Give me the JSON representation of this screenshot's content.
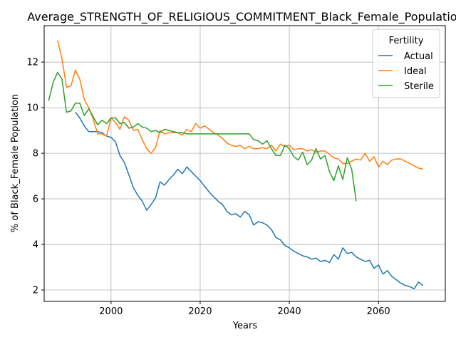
{
  "chart_data": {
    "type": "line",
    "title": "Average_STRENGTH_OF_RELIGIOUS_COMMITMENT_Black_Female_Population",
    "xlabel": "Years",
    "ylabel": "% of Black_Female Population",
    "xlim": [
      1985,
      2075
    ],
    "ylim": [
      1.5,
      13.6
    ],
    "xticks": [
      2000,
      2020,
      2040,
      2060
    ],
    "yticks": [
      2,
      4,
      6,
      8,
      10,
      12
    ],
    "grid": true,
    "legend": {
      "title": "Fertility",
      "position": "top-right"
    },
    "series": [
      {
        "name": "Actual",
        "color": "#1f77b4",
        "x": [
          1992,
          1993,
          1994,
          1995,
          1996,
          1997,
          1998,
          1999,
          2000,
          2001,
          2002,
          2003,
          2004,
          2005,
          2006,
          2007,
          2008,
          2009,
          2010,
          2011,
          2012,
          2013,
          2014,
          2015,
          2016,
          2017,
          2018,
          2019,
          2020,
          2021,
          2022,
          2023,
          2024,
          2025,
          2026,
          2027,
          2028,
          2029,
          2030,
          2031,
          2032,
          2033,
          2034,
          2035,
          2036,
          2037,
          2038,
          2039,
          2040,
          2041,
          2042,
          2043,
          2044,
          2045,
          2046,
          2047,
          2048,
          2049,
          2050,
          2051,
          2052,
          2053,
          2054,
          2055,
          2056,
          2057,
          2058,
          2059,
          2060,
          2061,
          2062,
          2063,
          2064,
          2065,
          2066,
          2067,
          2068,
          2069,
          2070
        ],
        "y": [
          9.8,
          9.55,
          9.2,
          8.95,
          8.95,
          8.95,
          8.9,
          8.75,
          8.7,
          8.5,
          7.9,
          7.6,
          7.05,
          6.5,
          6.15,
          5.9,
          5.5,
          5.75,
          6.05,
          6.75,
          6.6,
          6.85,
          7.05,
          7.3,
          7.1,
          7.4,
          7.2,
          7.0,
          6.8,
          6.55,
          6.3,
          6.1,
          5.9,
          5.75,
          5.45,
          5.3,
          5.35,
          5.2,
          5.45,
          5.3,
          4.85,
          5.0,
          4.95,
          4.85,
          4.65,
          4.3,
          4.2,
          3.95,
          3.85,
          3.7,
          3.6,
          3.5,
          3.45,
          3.35,
          3.4,
          3.25,
          3.3,
          3.2,
          3.55,
          3.35,
          3.85,
          3.6,
          3.65,
          3.45,
          3.35,
          3.25,
          3.3,
          2.95,
          3.1,
          2.7,
          2.85,
          2.6,
          2.45,
          2.3,
          2.2,
          2.15,
          2.05,
          2.35,
          2.2
        ]
      },
      {
        "name": "Ideal",
        "color": "#ff7f0e",
        "x": [
          1988,
          1989,
          1990,
          1991,
          1992,
          1993,
          1994,
          1995,
          1996,
          1997,
          1998,
          1999,
          2000,
          2001,
          2002,
          2003,
          2004,
          2005,
          2006,
          2007,
          2008,
          2009,
          2010,
          2011,
          2012,
          2013,
          2014,
          2015,
          2016,
          2017,
          2018,
          2019,
          2020,
          2021,
          2022,
          2023,
          2024,
          2025,
          2026,
          2027,
          2028,
          2029,
          2030,
          2031,
          2032,
          2033,
          2034,
          2035,
          2036,
          2037,
          2038,
          2039,
          2040,
          2041,
          2042,
          2043,
          2044,
          2045,
          2046,
          2047,
          2048,
          2049,
          2050,
          2051,
          2052,
          2053,
          2054,
          2055,
          2056,
          2057,
          2058,
          2059,
          2060,
          2061,
          2062,
          2063,
          2064,
          2065,
          2066,
          2067,
          2068,
          2069,
          2070
        ],
        "y": [
          12.95,
          12.15,
          10.9,
          10.95,
          11.65,
          11.25,
          10.35,
          10.0,
          9.5,
          8.85,
          8.85,
          8.75,
          9.55,
          9.35,
          9.05,
          9.6,
          9.45,
          9.0,
          9.05,
          8.6,
          8.2,
          8.0,
          8.25,
          9.0,
          8.85,
          8.9,
          8.9,
          8.9,
          8.8,
          9.05,
          8.95,
          9.3,
          9.1,
          9.2,
          9.05,
          8.9,
          8.8,
          8.65,
          8.45,
          8.35,
          8.3,
          8.35,
          8.2,
          8.3,
          8.2,
          8.2,
          8.25,
          8.2,
          8.35,
          8.1,
          8.4,
          8.3,
          8.35,
          8.15,
          8.2,
          8.2,
          8.1,
          8.15,
          8.05,
          8.1,
          8.1,
          7.95,
          7.8,
          7.75,
          7.55,
          7.55,
          7.65,
          7.75,
          7.7,
          8.0,
          7.65,
          7.85,
          7.4,
          7.65,
          7.5,
          7.7,
          7.75,
          7.75,
          7.65,
          7.55,
          7.45,
          7.35,
          7.3
        ]
      },
      {
        "name": "Sterile",
        "color": "#2ca02c",
        "x": [
          1986,
          1987,
          1988,
          1989,
          1990,
          1991,
          1992,
          1993,
          1994,
          1995,
          1996,
          1997,
          1998,
          1999,
          2000,
          2001,
          2002,
          2003,
          2004,
          2005,
          2006,
          2007,
          2008,
          2009,
          2010,
          2011,
          2012,
          2013,
          2014,
          2015,
          2016,
          2017,
          2018,
          2019,
          2020,
          2021,
          2022,
          2023,
          2024,
          2025,
          2026,
          2027,
          2028,
          2029,
          2030,
          2031,
          2032,
          2033,
          2034,
          2035,
          2036,
          2037,
          2038,
          2039,
          2040,
          2041,
          2042,
          2043,
          2044,
          2045,
          2046,
          2047,
          2048,
          2049,
          2050,
          2051,
          2052,
          2053,
          2054,
          2055
        ],
        "y": [
          10.3,
          11.1,
          11.55,
          11.25,
          9.8,
          9.85,
          10.2,
          10.2,
          9.65,
          9.95,
          9.6,
          9.25,
          9.45,
          9.3,
          9.55,
          9.55,
          9.3,
          9.35,
          9.1,
          9.15,
          9.3,
          9.15,
          9.1,
          8.95,
          9.0,
          8.9,
          9.05,
          9.0,
          8.95,
          8.9,
          8.9,
          8.85,
          8.85,
          8.85,
          8.85,
          8.85,
          8.85,
          8.85,
          8.85,
          8.85,
          8.85,
          8.85,
          8.85,
          8.85,
          8.85,
          8.85,
          8.6,
          8.55,
          8.4,
          8.55,
          8.2,
          7.9,
          7.9,
          8.35,
          8.2,
          7.85,
          7.7,
          8.05,
          7.5,
          7.7,
          8.2,
          7.75,
          7.9,
          7.2,
          6.8,
          7.45,
          6.85,
          7.8,
          7.3,
          5.9
        ]
      }
    ]
  }
}
